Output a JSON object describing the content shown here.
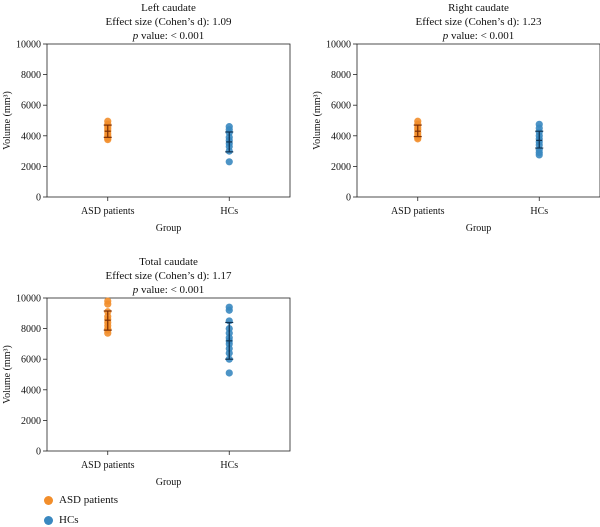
{
  "colors": {
    "asd": "#f28e2b",
    "hc": "#3a88c0",
    "asd_bar": "#7a2e05",
    "hc_bar": "#0e3150"
  },
  "legend": [
    {
      "name": "ASD patients",
      "color": "#f28e2b"
    },
    {
      "name": "HCs",
      "color": "#3a88c0"
    }
  ],
  "chart_data": [
    {
      "type": "scatter",
      "title": "Left caudate",
      "effect_label": "Effect size (Cohen’s d): 1.09",
      "p_prefix": "p",
      "p_label": " value: < 0.001",
      "xlabel": "Group",
      "ylabel": "Volume (mm³)",
      "categories": [
        "ASD patients",
        "HCs"
      ],
      "ylim": [
        0,
        10000
      ],
      "yticks": [
        0,
        2000,
        4000,
        6000,
        8000,
        10000
      ],
      "series": [
        {
          "values": [
            4950,
            4750,
            4600,
            4450,
            4300,
            4150,
            4000,
            3850,
            3750
          ],
          "error": {
            "low": 3900,
            "high": 4700,
            "mean": 4300
          }
        },
        {
          "values": [
            4600,
            4400,
            4200,
            3900,
            3700,
            3500,
            3300,
            3000,
            2300
          ],
          "error": {
            "low": 2950,
            "high": 4250,
            "mean": 3600
          }
        }
      ]
    },
    {
      "type": "scatter",
      "title": "Right caudate",
      "effect_label": "Effect size (Cohen’s d): 1.23",
      "p_prefix": "p",
      "p_label": " value: < 0.001",
      "xlabel": "Group",
      "ylabel": "Volume (mm³)",
      "categories": [
        "ASD patients",
        "HCs"
      ],
      "ylim": [
        0,
        10000
      ],
      "yticks": [
        0,
        2000,
        4000,
        6000,
        8000,
        10000
      ],
      "series": [
        {
          "values": [
            4950,
            4750,
            4550,
            4400,
            4200,
            4050,
            3900,
            3800
          ],
          "error": {
            "low": 3950,
            "high": 4700,
            "mean": 4300
          }
        },
        {
          "values": [
            4750,
            4500,
            4250,
            4000,
            3800,
            3600,
            3400,
            3100,
            2900,
            2750
          ],
          "error": {
            "low": 3200,
            "high": 4300,
            "mean": 3700
          }
        }
      ]
    },
    {
      "type": "scatter",
      "title": "Total caudate",
      "effect_label": "Effect size (Cohen’s d): 1.17",
      "p_prefix": "p",
      "p_label": " value: < 0.001",
      "xlabel": "Group",
      "ylabel": "Volume (mm³)",
      "categories": [
        "ASD patients",
        "HCs"
      ],
      "ylim": [
        0,
        10000
      ],
      "yticks": [
        0,
        2000,
        4000,
        6000,
        8000,
        10000
      ],
      "series": [
        {
          "values": [
            9800,
            9600,
            9100,
            8800,
            8600,
            8400,
            8200,
            8000,
            7900,
            7700
          ],
          "error": {
            "low": 7900,
            "high": 9150,
            "mean": 8550
          }
        },
        {
          "values": [
            9400,
            9200,
            8500,
            8000,
            7700,
            7400,
            7200,
            7000,
            6700,
            6400,
            6000,
            5100
          ],
          "error": {
            "low": 6000,
            "high": 8400,
            "mean": 7200
          }
        }
      ]
    }
  ]
}
